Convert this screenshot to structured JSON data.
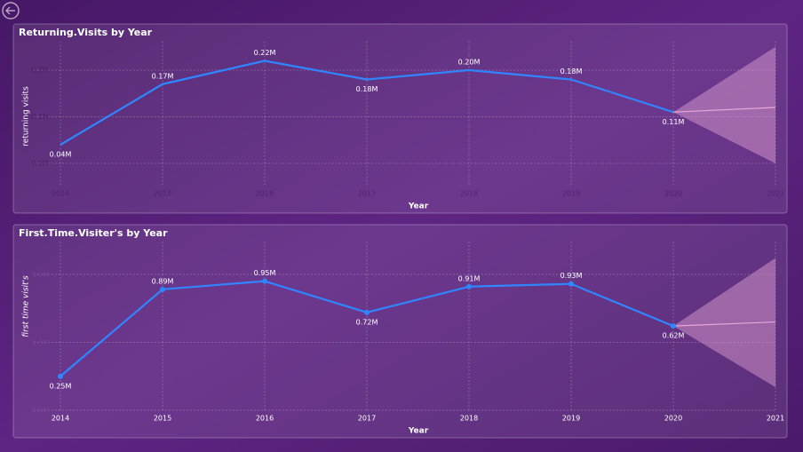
{
  "chart_data": [
    {
      "type": "line",
      "title": "Returning.Visits by Year",
      "x_label": "Year",
      "y_label": "returning visits",
      "x": [
        2014,
        2015,
        2016,
        2017,
        2018,
        2019,
        2020
      ],
      "series": [
        {
          "name": "returning visits",
          "color": "#2f86ff",
          "values": [
            0.04,
            0.17,
            0.22,
            0.18,
            0.2,
            0.18,
            0.11
          ],
          "value_labels": [
            "0.04M",
            "0.17M",
            "0.22M",
            "0.18M",
            "0.20M",
            "0.18M",
            "0.11M"
          ]
        }
      ],
      "markers": false,
      "forecast": {
        "x": [
          2020,
          2021
        ],
        "values": [
          0.11,
          0.12
        ],
        "upper": [
          0.11,
          0.25
        ],
        "lower": [
          0.11,
          0.0
        ],
        "color": "#e9a6d8"
      },
      "xlim": [
        2014,
        2021
      ],
      "xticks": [
        2014,
        2015,
        2016,
        2017,
        2018,
        2019,
        2020,
        2021
      ],
      "ylim": [
        -0.05,
        0.25
      ],
      "yticks": [
        {
          "value": 0,
          "label": "0.0M"
        },
        {
          "value": 0.1,
          "label": "0.1M"
        },
        {
          "value": 0.2,
          "label": "0.2M"
        }
      ],
      "grid": true
    },
    {
      "type": "line",
      "title": "First.Time.Visiter's by Year",
      "x_label": "Year",
      "y_label": "first time visit's",
      "x": [
        2014,
        2015,
        2016,
        2017,
        2018,
        2019,
        2020
      ],
      "series": [
        {
          "name": "first time visit's",
          "color": "#2f86ff",
          "values": [
            0.25,
            0.89,
            0.95,
            0.72,
            0.91,
            0.93,
            0.62
          ],
          "value_labels": [
            "0.25M",
            "0.89M",
            "0.95M",
            "0.72M",
            "0.91M",
            "0.93M",
            "0.62M"
          ]
        }
      ],
      "markers": true,
      "forecast": {
        "x": [
          2020,
          2021
        ],
        "values": [
          0.62,
          0.65
        ],
        "upper": [
          0.62,
          1.12
        ],
        "lower": [
          0.62,
          0.17
        ],
        "color": "#e9a6d8"
      },
      "xlim": [
        2014,
        2021
      ],
      "xticks": [
        2014,
        2015,
        2016,
        2017,
        2018,
        2019,
        2020,
        2021
      ],
      "ylim": [
        0,
        1.2
      ],
      "yticks": [
        {
          "value": 0,
          "label": "0.0M"
        },
        {
          "value": 0.5,
          "label": "0.5M"
        },
        {
          "value": 1,
          "label": "1.0M"
        }
      ],
      "grid": true
    }
  ]
}
